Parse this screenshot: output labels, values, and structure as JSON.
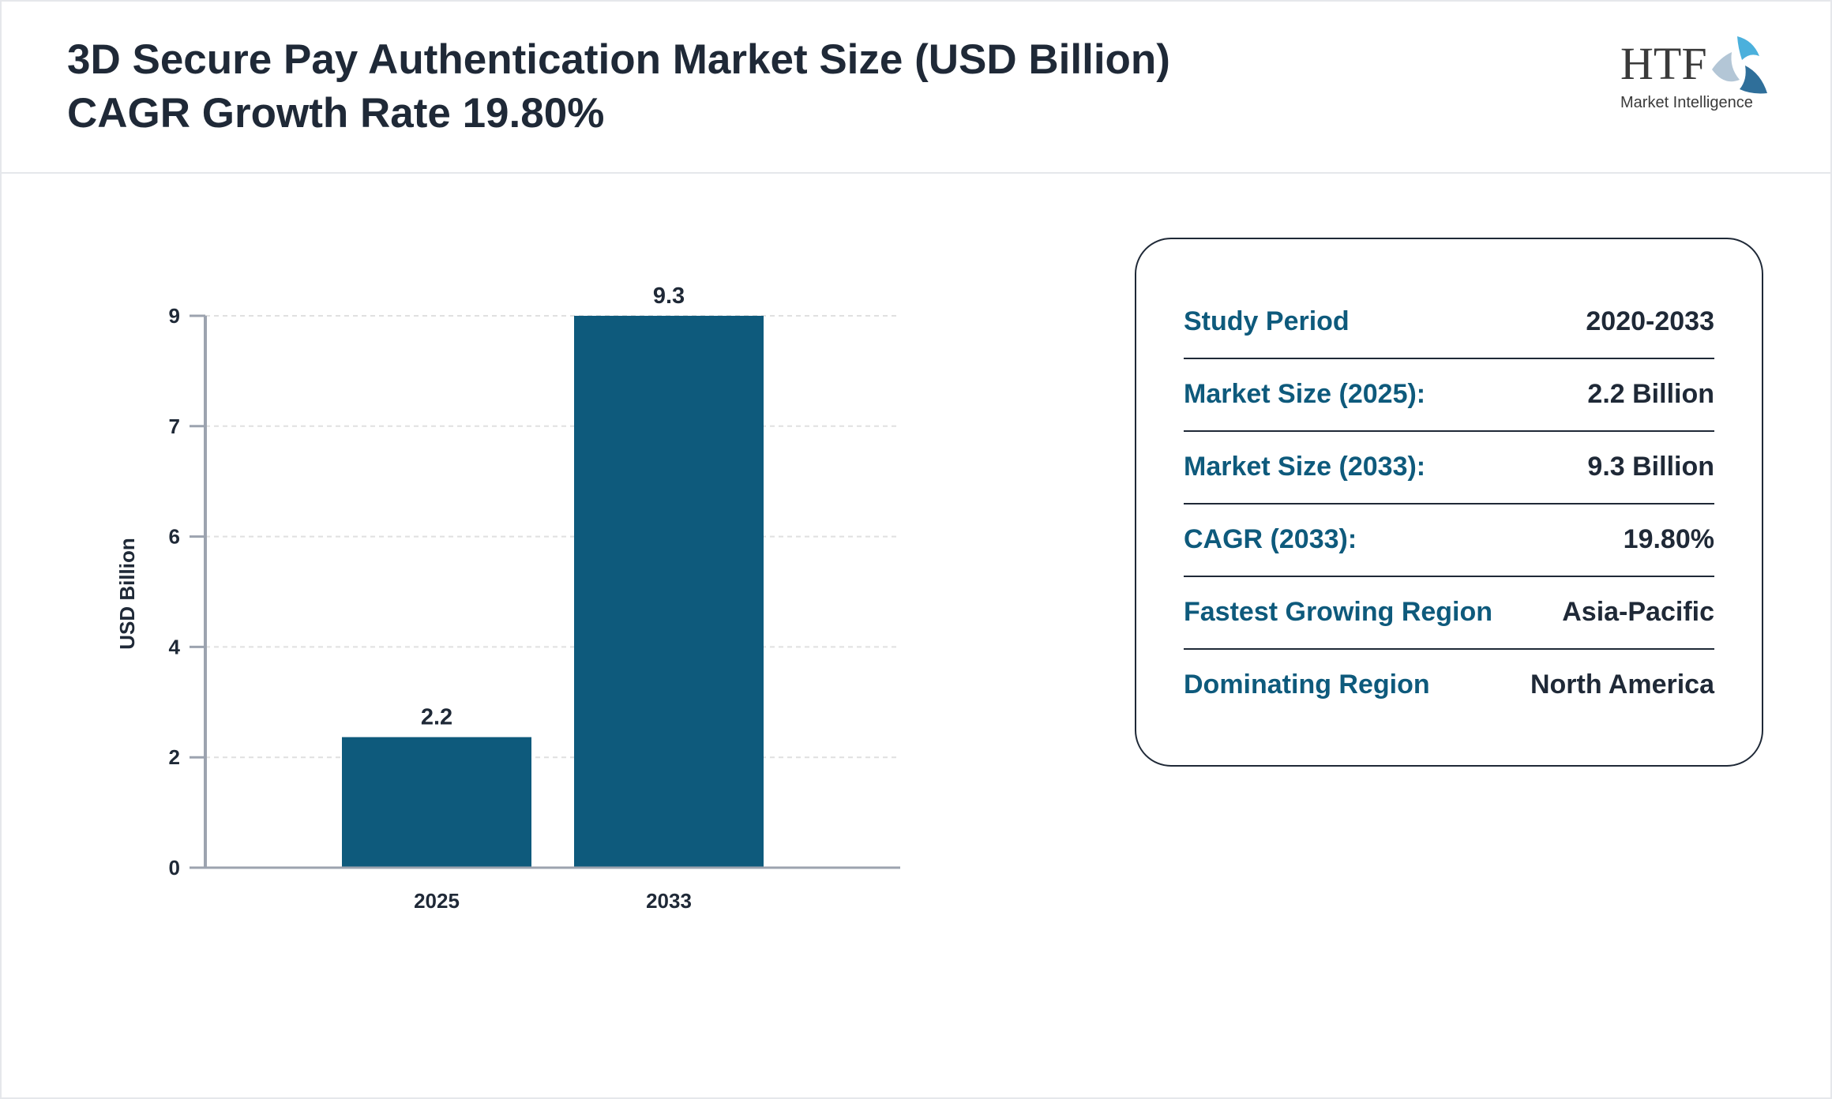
{
  "header": {
    "title": "3D Secure Pay Authentication Market Size (USD Billion) CAGR Growth Rate 19.80%"
  },
  "logo": {
    "text_main": "HTF",
    "text_sub": "Market Intelligence"
  },
  "colors": {
    "bar": "#0e5a7c",
    "label": "#0e5a7c",
    "text": "#1f2937"
  },
  "chart_data": {
    "type": "bar",
    "categories": [
      "2025",
      "2033"
    ],
    "values": [
      2.2,
      9.3
    ],
    "data_labels": [
      "2.2",
      "9.3"
    ],
    "ylabel": "USD Billion",
    "xlabel": "",
    "ylim": [
      0,
      9.3
    ],
    "yticks": [
      {
        "value": 0,
        "label": "0"
      },
      {
        "value": 1.86,
        "label": "2"
      },
      {
        "value": 3.72,
        "label": "4"
      },
      {
        "value": 5.58,
        "label": "6"
      },
      {
        "value": 7.44,
        "label": "7"
      },
      {
        "value": 9.3,
        "label": "9"
      }
    ],
    "grid": true
  },
  "summary": {
    "rows": [
      {
        "label": "Study Period",
        "value": "2020-2033"
      },
      {
        "label": "Market Size (2025):",
        "value": "2.2 Billion"
      },
      {
        "label": "Market Size (2033):",
        "value": "9.3 Billion"
      },
      {
        "label": "CAGR (2033):",
        "value": "19.80%"
      },
      {
        "label": "Fastest Growing Region",
        "value": "Asia-Pacific"
      },
      {
        "label": "Dominating Region",
        "value": "North America"
      }
    ]
  }
}
